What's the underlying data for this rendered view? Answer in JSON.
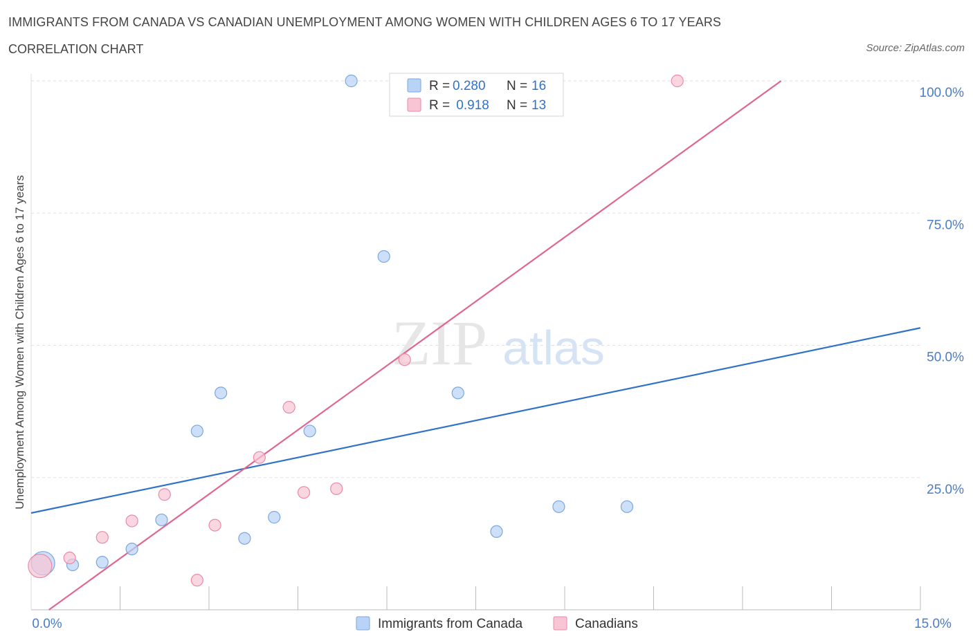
{
  "header": {
    "title": "IMMIGRANTS FROM CANADA VS CANADIAN UNEMPLOYMENT AMONG WOMEN WITH CHILDREN AGES 6 TO 17 YEARS",
    "subtitle": "CORRELATION CHART",
    "source": "Source: ZipAtlas.com"
  },
  "watermark": {
    "zip": "ZIP",
    "atlas": "atlas"
  },
  "colors": {
    "blue_fill": "#b9d3f6",
    "blue_stroke": "#7aa7e0",
    "blue_line": "#2f72c8",
    "pink_fill": "#f8c5d4",
    "pink_stroke": "#e98aa8",
    "pink_line": "#e0668f",
    "tick_label": "#4a7cc7"
  },
  "stats_legend": {
    "rows": [
      {
        "series": "Immigrants from Canada",
        "r_label": "R = ",
        "r_value": "0.280",
        "n_label": "N = ",
        "n_value": "16"
      },
      {
        "series": "Canadians",
        "r_label": "R = ",
        "r_value": " 0.918",
        "n_label": "N = ",
        "n_value": "13"
      }
    ]
  },
  "chart_data": {
    "type": "scatter",
    "title": "IMMIGRANTS FROM CANADA VS CANADIAN UNEMPLOYMENT AMONG WOMEN WITH CHILDREN AGES 6 TO 17 YEARS",
    "ylabel": "Unemployment Among Women with Children Ages 6 to 17 years",
    "xlabel": "",
    "xlim": [
      0,
      15
    ],
    "ylim": [
      0,
      100
    ],
    "x_tick_labels": [
      {
        "value": 0,
        "label": "0.0%"
      },
      {
        "value": 15,
        "label": "15.0%"
      }
    ],
    "y_tick_labels": [
      {
        "value": 25,
        "label": "25.0%"
      },
      {
        "value": 50,
        "label": "50.0%"
      },
      {
        "value": 75,
        "label": "75.0%"
      },
      {
        "value": 100,
        "label": "100.0%"
      }
    ],
    "grid": true,
    "legend_position": "bottom-center",
    "series": [
      {
        "name": "Immigrants from Canada",
        "color": "#b9d3f6",
        "points": [
          {
            "x": 0.2,
            "y": 8.8,
            "large": true
          },
          {
            "x": 0.7,
            "y": 8.5
          },
          {
            "x": 1.2,
            "y": 9.0
          },
          {
            "x": 1.7,
            "y": 11.5
          },
          {
            "x": 2.2,
            "y": 17.0
          },
          {
            "x": 2.8,
            "y": 33.8
          },
          {
            "x": 3.2,
            "y": 41.0
          },
          {
            "x": 3.6,
            "y": 13.5
          },
          {
            "x": 4.1,
            "y": 17.5
          },
          {
            "x": 4.7,
            "y": 33.8
          },
          {
            "x": 5.4,
            "y": 100.0
          },
          {
            "x": 5.95,
            "y": 66.8
          },
          {
            "x": 7.2,
            "y": 41.0
          },
          {
            "x": 7.85,
            "y": 14.8
          },
          {
            "x": 8.9,
            "y": 19.5
          },
          {
            "x": 10.05,
            "y": 19.5
          }
        ],
        "trendline": {
          "x0": 0,
          "y0": 18.3,
          "x1": 15,
          "y1": 53.3
        }
      },
      {
        "name": "Canadians",
        "color": "#f8c5d4",
        "points": [
          {
            "x": 0.15,
            "y": 8.3,
            "large": true
          },
          {
            "x": 0.65,
            "y": 9.8
          },
          {
            "x": 1.2,
            "y": 13.7
          },
          {
            "x": 1.7,
            "y": 16.8
          },
          {
            "x": 2.25,
            "y": 21.8
          },
          {
            "x": 2.8,
            "y": 5.6
          },
          {
            "x": 3.1,
            "y": 16.0
          },
          {
            "x": 3.85,
            "y": 28.8
          },
          {
            "x": 4.35,
            "y": 38.3
          },
          {
            "x": 4.6,
            "y": 22.2
          },
          {
            "x": 5.15,
            "y": 22.9
          },
          {
            "x": 6.3,
            "y": 47.3
          },
          {
            "x": 10.9,
            "y": 100.0
          }
        ],
        "trendline": {
          "x0": 0.3,
          "y0": 0,
          "x1": 12.65,
          "y1": 100
        }
      }
    ]
  }
}
